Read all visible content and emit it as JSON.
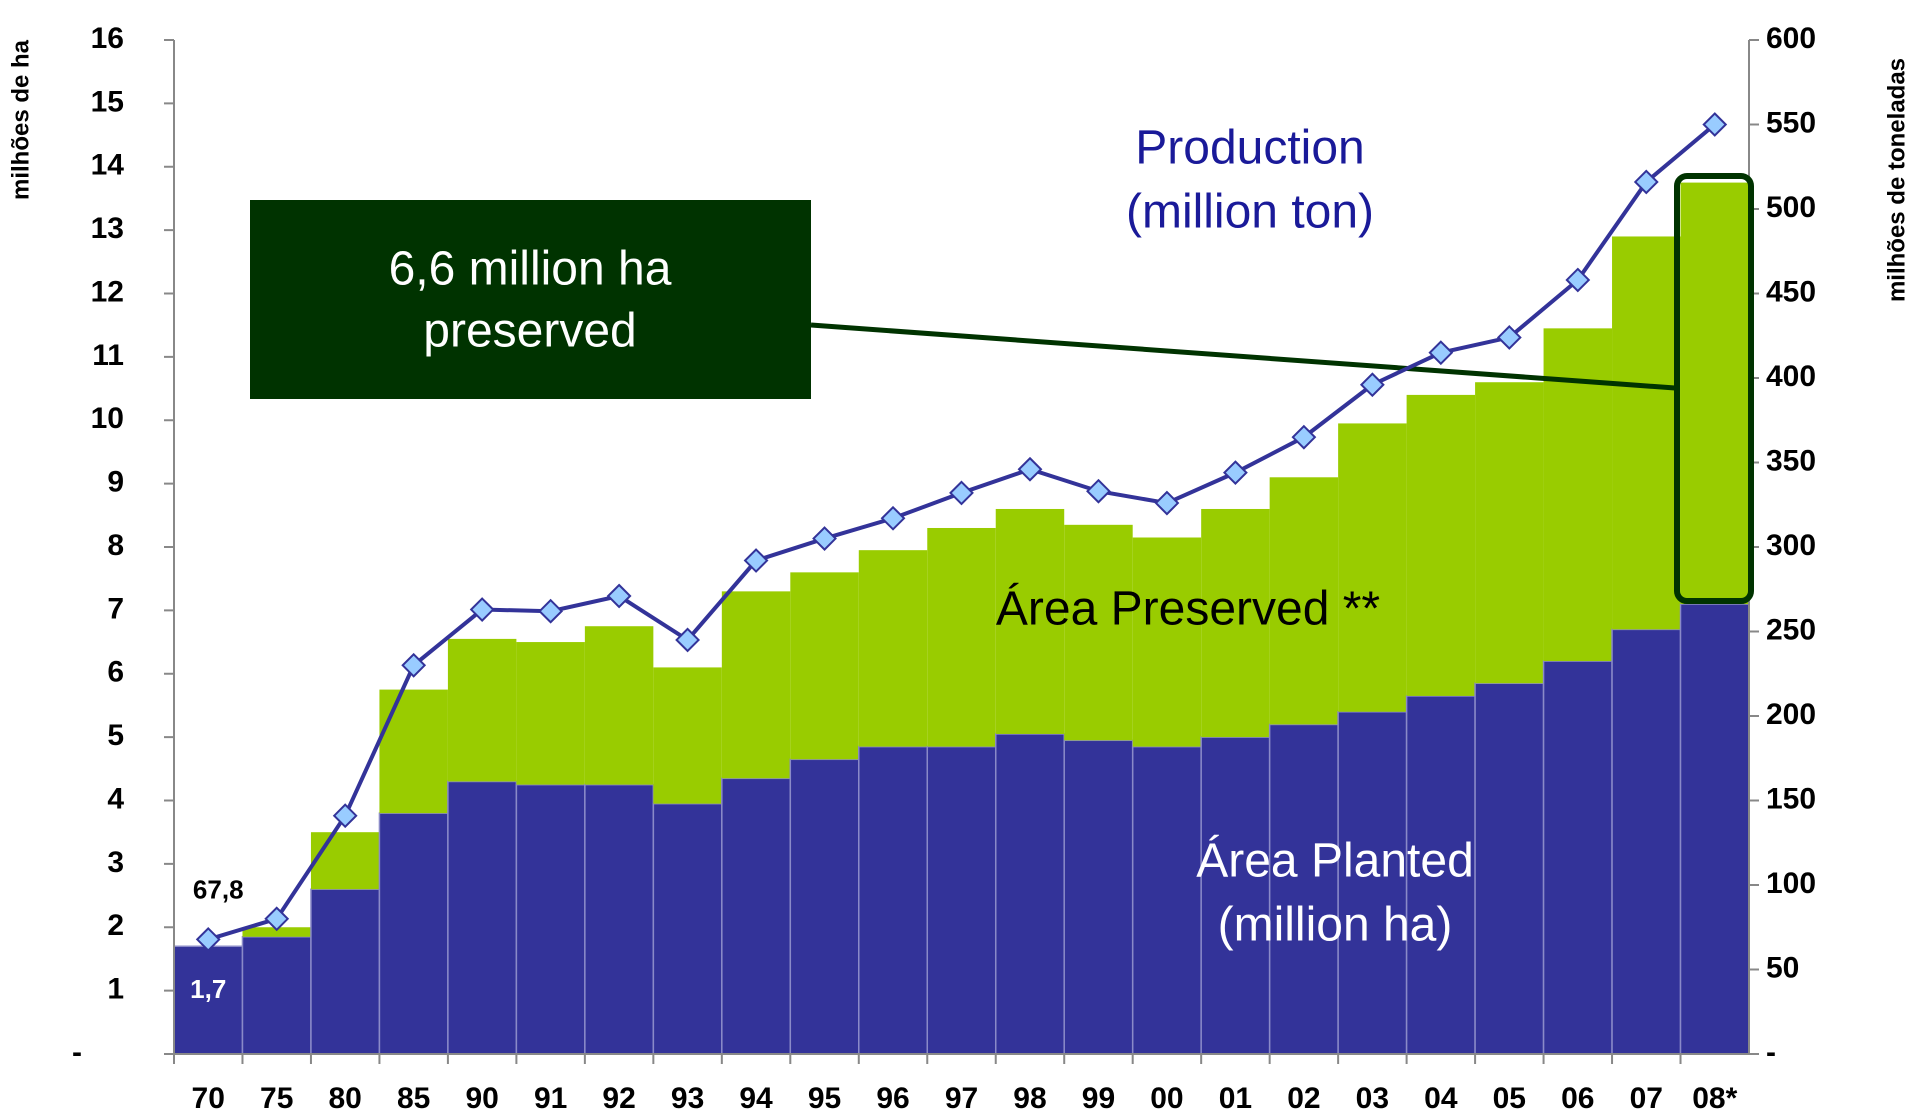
{
  "chart_data": {
    "type": "bar-line",
    "y_label": "milhões de ha",
    "y2_label": "milhões de toneladas",
    "categories": [
      "70",
      "75",
      "80",
      "85",
      "90",
      "91",
      "92",
      "93",
      "94",
      "95",
      "96",
      "97",
      "98",
      "99",
      "00",
      "01",
      "02",
      "03",
      "04",
      "05",
      "06",
      "07",
      "08*"
    ],
    "series": [
      {
        "name": "Área Planted",
        "color": "#333399",
        "stack": true,
        "values": [
          1.7,
          1.85,
          2.6,
          3.8,
          4.3,
          4.25,
          4.25,
          3.95,
          4.35,
          4.65,
          4.85,
          4.85,
          5.05,
          4.95,
          4.85,
          5.0,
          5.2,
          5.4,
          5.65,
          5.85,
          6.2,
          6.7,
          7.1
        ],
        "value_labels": [
          "1,7",
          null,
          null,
          null,
          null,
          null,
          null,
          null,
          null,
          null,
          null,
          null,
          null,
          null,
          null,
          null,
          null,
          null,
          null,
          null,
          null,
          null,
          null
        ]
      },
      {
        "name": "Área Preserved",
        "color": "#99cc00",
        "stack": true,
        "values": [
          0,
          0.15,
          0.9,
          1.95,
          2.25,
          2.25,
          2.5,
          2.15,
          2.95,
          2.95,
          3.1,
          3.45,
          3.55,
          3.4,
          3.3,
          3.6,
          3.9,
          4.55,
          4.75,
          4.75,
          5.25,
          6.2,
          6.65
        ]
      },
      {
        "name": "Production",
        "color": "#333399",
        "marker_color": "#99ccff",
        "axis": "y2",
        "values": [
          67.8,
          80,
          141,
          230,
          263,
          262,
          271,
          245,
          292,
          305,
          317,
          332,
          346,
          333,
          326,
          344,
          365,
          396,
          415,
          424,
          458,
          516,
          550
        ],
        "value_labels": [
          "67,8",
          null,
          null,
          null,
          null,
          null,
          null,
          null,
          null,
          null,
          null,
          null,
          null,
          null,
          null,
          null,
          null,
          null,
          null,
          null,
          null,
          null,
          null
        ]
      }
    ],
    "ylim": [
      0,
      16
    ],
    "yticks": [
      {
        "value": 0,
        "label": "-"
      },
      1,
      2,
      3,
      4,
      5,
      6,
      7,
      8,
      9,
      10,
      11,
      12,
      13,
      14,
      15,
      16
    ],
    "y2lim": [
      0,
      600
    ],
    "y2ticks": [
      {
        "value": 0,
        "label": "-"
      },
      50,
      100,
      150,
      200,
      250,
      300,
      350,
      400,
      450,
      500,
      550,
      600
    ],
    "production_label": [
      "Production",
      "(million ton)"
    ],
    "preserved_label": [
      "Área Preserved **"
    ],
    "planted_label": [
      "Área Planted",
      "(million ha)"
    ],
    "callout": [
      "6,6 million ha",
      "preserved"
    ]
  }
}
